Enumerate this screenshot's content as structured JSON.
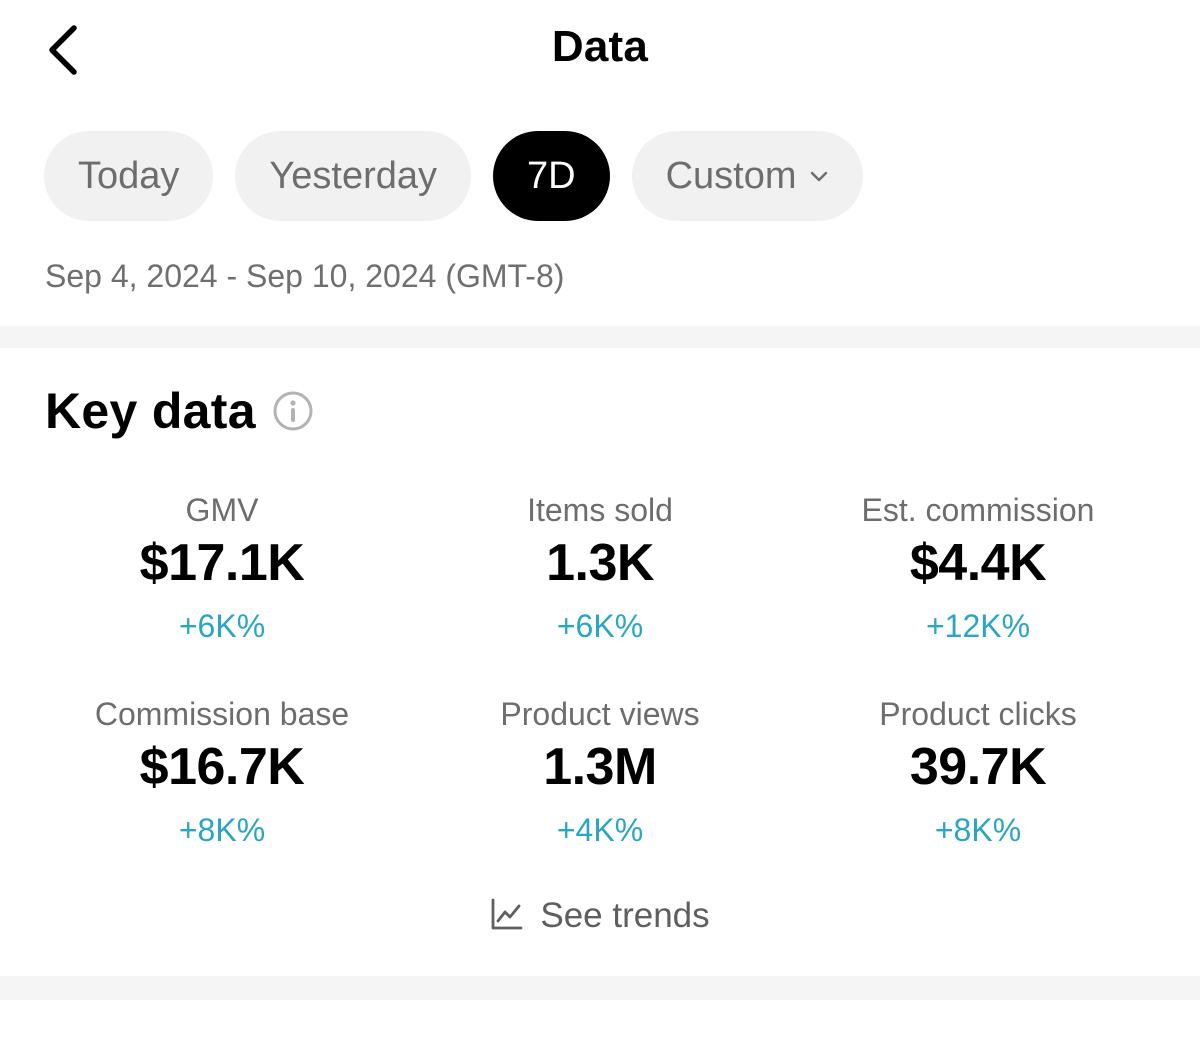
{
  "header": {
    "title": "Data"
  },
  "tabs": [
    {
      "label": "Today"
    },
    {
      "label": "Yesterday"
    },
    {
      "label": "7D",
      "active": true
    },
    {
      "label": "Custom"
    }
  ],
  "date_range": "Sep 4, 2024 - Sep 10, 2024 (GMT-8)",
  "key_data": {
    "title": "Key data",
    "metrics": [
      {
        "label": "GMV",
        "value": "$17.1K",
        "change": "+6K%"
      },
      {
        "label": "Items sold",
        "value": "1.3K",
        "change": "+6K%"
      },
      {
        "label": "Est. commission",
        "value": "$4.4K",
        "change": "+12K%"
      },
      {
        "label": "Commission base",
        "value": "$16.7K",
        "change": "+8K%"
      },
      {
        "label": "Product views",
        "value": "1.3M",
        "change": "+4K%"
      },
      {
        "label": "Product clicks",
        "value": "39.7K",
        "change": "+8K%"
      }
    ],
    "see_trends": "See trends"
  },
  "colors": {
    "accent_change": "#2aa6c4",
    "active_tab": "#000000",
    "tab_bg": "#f1f1f1"
  },
  "icons": [
    "chevron-left-icon",
    "chevron-down-icon",
    "info-icon",
    "line-chart-icon"
  ]
}
